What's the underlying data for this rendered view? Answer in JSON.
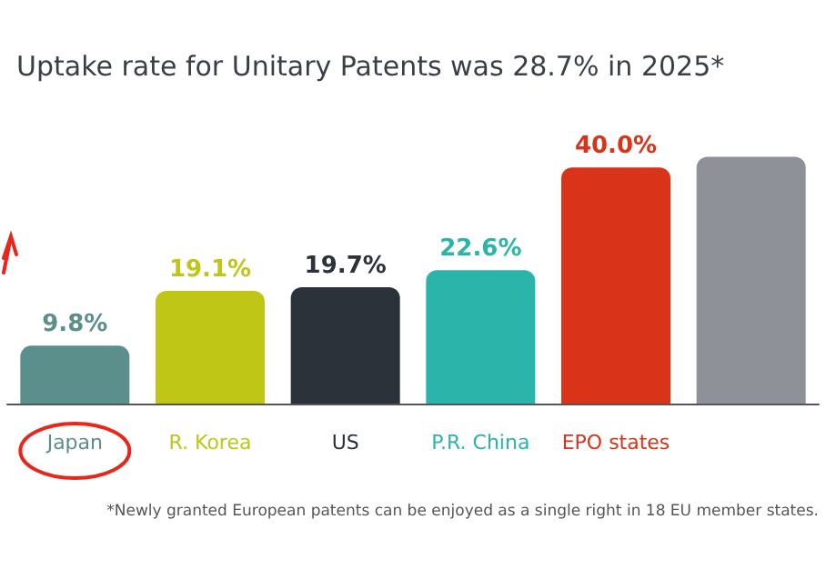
{
  "chart_data": {
    "type": "bar",
    "title": "Uptake rate for Unitary Patents was 28.7% in 2025*",
    "categories": [
      "Japan",
      "R. Korea",
      "US",
      "P.R. China",
      "EPO states",
      null
    ],
    "values": [
      9.8,
      19.1,
      19.7,
      22.6,
      40.0,
      41.8
    ],
    "colors": [
      "#5b8f8c",
      "#bfc615",
      "#2c323a",
      "#2bb5aa",
      "#d9341a",
      "#8e9298"
    ],
    "value_labels": [
      "9.8%",
      "19.1%",
      "19.7%",
      "22.6%",
      "40.0%",
      null
    ],
    "annotations": [
      "*Newly granted European patents can be enjoyed as a single right in 18 EU member states."
    ],
    "data_labels": false
  }
}
